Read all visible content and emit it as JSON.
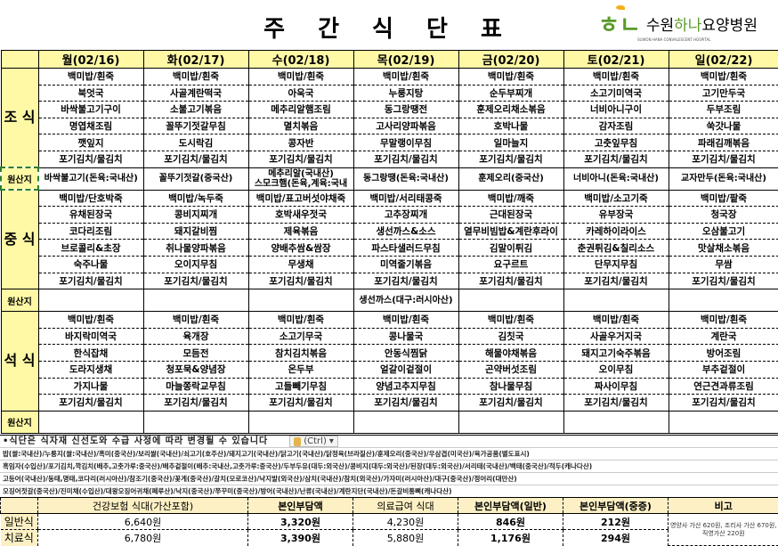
{
  "title": "주 간 식 단 표",
  "logo": {
    "mark": "하나",
    "name_a": "수원",
    "name_b": "하나",
    "name_c": "요양병원",
    "subtitle": "SUWON HANA CONVALESCENT HOSPITAL"
  },
  "days": [
    "월(02/16)",
    "화(02/17)",
    "수(02/18)",
    "목(02/19)",
    "금(02/20)",
    "토(02/21)",
    "일(02/22)"
  ],
  "origin_label": "원산지",
  "meals": [
    {
      "label": "조 식",
      "items": [
        [
          "백미밥/흰죽",
          "백미밥/흰죽",
          "백미밥/흰죽",
          "백미밥/흰죽",
          "백미밥/흰죽",
          "백미밥/흰죽",
          "백미밥/흰죽"
        ],
        [
          "북엇국",
          "사골계란떡국",
          "아욱국",
          "누룽지탕",
          "순두부찌개",
          "소고기미역국",
          "고기만두국"
        ],
        [
          "바싹불고기구이",
          "소불고기볶음",
          "메추리알햄조림",
          "동그랑땡전",
          "훈제오리채소볶음",
          "너비아니구이",
          "두부조림"
        ],
        [
          "명엽채조림",
          "꼴뚜기젓갈무침",
          "멸치볶음",
          "고사리양파볶음",
          "호박나물",
          "감자조림",
          "쑥갓나물"
        ],
        [
          "깻잎지",
          "도시락김",
          "콩자반",
          "무말랭이무침",
          "일마늘지",
          "고춧잎무침",
          "파래김깨볶음"
        ],
        [
          "포기김치/물김치",
          "포기김치/물김치",
          "포기김치/물김치",
          "포기김치/물김치",
          "포기김치/물김치",
          "포기김치/물김치",
          "포기김치/물김치"
        ]
      ],
      "origin": [
        "바싹불고기(돈육:국내산)",
        "꼴뚜기젓갈(중국산)",
        "메추리알(국내산)\n스모크햄(돈육,계육:국내",
        "동그랑땡(돈육:국내산)",
        "훈제오리(중국산)",
        "너비아니(돈육:국내산)",
        "교자만두(돈육:국내산)"
      ]
    },
    {
      "label": "중 식",
      "items": [
        [
          "백미밥/단호박죽",
          "백미밥/녹두죽",
          "백미밥/표고버섯야채죽",
          "백미밥/서리태콩죽",
          "백미밥/깨죽",
          "백미밥/소고기죽",
          "백미밥/팥죽"
        ],
        [
          "유채된장국",
          "콩비지찌개",
          "호박새우젓국",
          "고추장찌개",
          "근대된장국",
          "유부장국",
          "청국장"
        ],
        [
          "코다리조림",
          "돼지갈비찜",
          "제육볶음",
          "생선까스&소스",
          "열무비빔밥&계란후라이",
          "카레하이라이스",
          "오삼불고기"
        ],
        [
          "브로콜리&초장",
          "취나물양파볶음",
          "양배추쌈&쌈장",
          "파스타샐러드무침",
          "김말이튀김",
          "춘권튀김&칠리소스",
          "맛살채소볶음"
        ],
        [
          "숙주나물",
          "오이지무침",
          "무생채",
          "미역줄기볶음",
          "요구르트",
          "단무지무침",
          "무쌈"
        ],
        [
          "포기김치/물김치",
          "포기김치/물김치",
          "포기김치/물김치",
          "포기김치/물김치",
          "포기김치/물김치",
          "포기김치/물김치",
          "포기김치/물김치"
        ]
      ],
      "origin": [
        "",
        "",
        "",
        "생선까스(대구:러시아산)",
        "",
        "",
        ""
      ]
    },
    {
      "label": "석 식",
      "items": [
        [
          "백미밥/흰죽",
          "백미밥/흰죽",
          "백미밥/흰죽",
          "백미밥/흰죽",
          "백미밥/흰죽",
          "백미밥/흰죽",
          "백미밥/흰죽"
        ],
        [
          "바지락미역국",
          "육개장",
          "소고기무국",
          "콩나물국",
          "김칫국",
          "사골우거지국",
          "계란국"
        ],
        [
          "한식잡채",
          "모듬전",
          "참치김치볶음",
          "안동식찜닭",
          "해물야채볶음",
          "돼지고기숙주볶음",
          "방어조림"
        ],
        [
          "도라지생채",
          "청포묵&양념장",
          "온두부",
          "얼갈이겉절이",
          "곤약버섯조림",
          "오이무침",
          "부추겉절이"
        ],
        [
          "가지나물",
          "마늘쫑락교무침",
          "고들빼기무침",
          "양념고추지무침",
          "참나물무침",
          "짜사이무침",
          "연근견과류조림"
        ],
        [
          "포기김치/물김치",
          "포기김치/물김치",
          "포기김치/물김치",
          "포기김치/물김치",
          "포기김치/물김치",
          "포기김치/물김치",
          "포기김치/물김치"
        ]
      ],
      "origin": [
        "",
        "",
        "",
        "",
        "",
        "",
        ""
      ]
    }
  ],
  "notes": [
    "•식단은 식자재 신선도와 수급 사정에 따라 변경될 수 있습니다",
    "밥(쌀:국내산)/누룽지(쌀:국내산)/흑미(중국산)/보리쌀(국내산)/쇠고기(호주산)/돼지고기(국내산)/닭고기(국내산)/닭정육(브라질산)/훈제오리(중국산)/우삼겹(미국산)/육가공품(별도표시)",
    "흑임자(수입산)/포기김치,깍김치(배추,고춧가루:중국산)/배추겉절이(배추:국내산,고춧가루:중국산)/두부두유(대두:외국산)/콩비지(대두:외국산)/된장(대두:외국산)/서리태(국내산)/백태(중국산)/적두(캐나다산)",
    "고등어(국내산)/동태,명태,코다리(러시아산)/참조기(중국산)/꽃게(중국산)/갈치(모로코산)/낙지발(외국산)/삼치(국내산)/참치(외국산)/가자미(러시아산)/대구(중국산)/정어리(대만산)",
    "오징어젓갈(중국산)/진미채(수입산)/대왕오징어귀채(페루산)/낙지(중국산)/쭈꾸미(중국산)/방어(국내산)/난류(국내산)/계란지단(국내산)/돈갈비통뼈(캐나다산)"
  ],
  "paste_popup": "(Ctrl)",
  "cost": {
    "headers": [
      "건강보험 식대(가산포함)",
      "본인부담액",
      "의료급여 식대",
      "본인부담액(일반)",
      "본인부담액(중증)",
      "비고"
    ],
    "rows": [
      {
        "label": "일반식",
        "values": [
          "6,640원",
          "3,320원",
          "4,230원",
          "846원",
          "212원"
        ]
      },
      {
        "label": "치료식",
        "values": [
          "6,780원",
          "3,390원",
          "5,880원",
          "1,176원",
          "294원"
        ]
      }
    ],
    "remark": "영양사 가산 620원, 조리사 가산 670원, 직영가산 220원"
  }
}
